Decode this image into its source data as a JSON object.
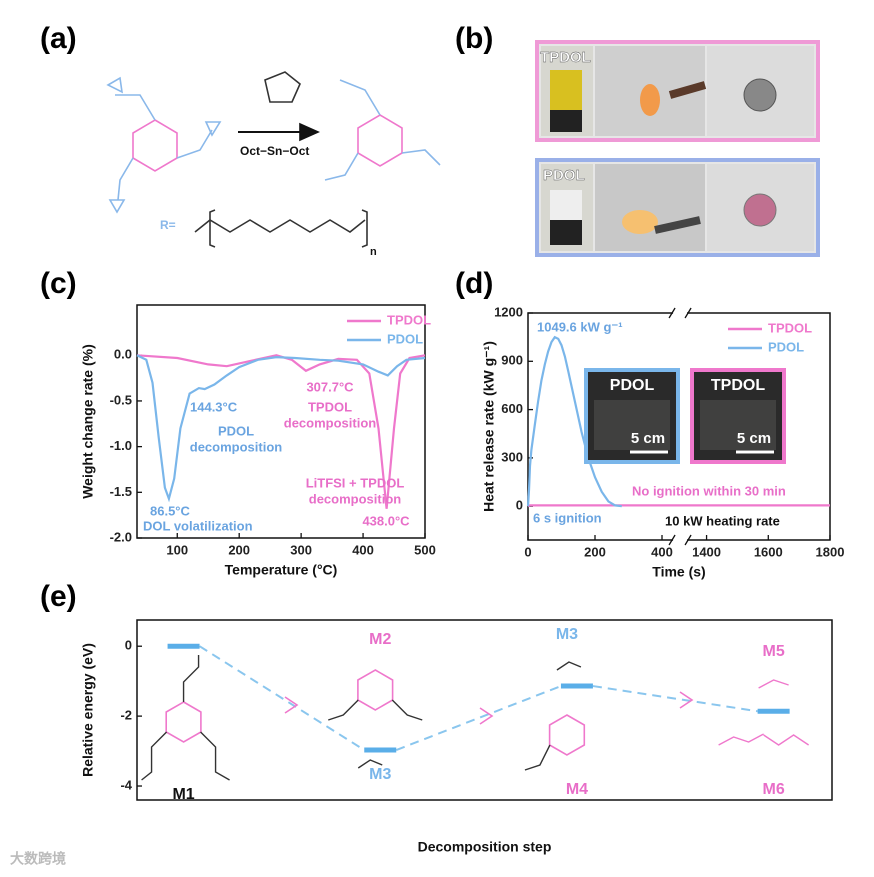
{
  "panel_labels": [
    "(a)",
    "(b)",
    "(c)",
    "(d)",
    "(e)"
  ],
  "scheme_a": {
    "catalyst": "Oct−Sn−Oct",
    "r_label": "R=",
    "subscript": "n"
  },
  "photos_b": {
    "labels": [
      "TPDOL",
      "PDOL"
    ]
  },
  "watermark": "大数跨境",
  "chart_data": [
    {
      "type": "line",
      "x_label": "Temperature (°C)",
      "y_label": "Weight change rate (%)",
      "xlim": [
        35,
        500
      ],
      "xticks": [
        100,
        200,
        300,
        400,
        500
      ],
      "ylim": [
        -2.0,
        0.55
      ],
      "yticks": [
        {
          "value": -2,
          "label": "-2.0"
        },
        -1.5,
        {
          "value": -1,
          "label": "-1.0"
        },
        -0.5,
        {
          "value": 0,
          "label": "0.0"
        }
      ],
      "legend": "upper right",
      "series": [
        {
          "name": "TPDOL",
          "color": "#ef78cc",
          "x": [
            35,
            100,
            150,
            180,
            220,
            260,
            285,
            307.7,
            330,
            360,
            390,
            410,
            425,
            438,
            450,
            460,
            475,
            500
          ],
          "values": [
            0,
            -0.03,
            -0.1,
            -0.12,
            -0.06,
            0,
            -0.05,
            -0.17,
            -0.1,
            -0.04,
            -0.05,
            -0.2,
            -0.8,
            -1.68,
            -0.8,
            -0.2,
            -0.03,
            0
          ]
        },
        {
          "name": "PDOL",
          "color": "#7ab6ea",
          "x": [
            35,
            50,
            60,
            70,
            80,
            86.5,
            95,
            105,
            120,
            135,
            144.3,
            160,
            180,
            200,
            230,
            260,
            290,
            330,
            360,
            400,
            425,
            440,
            455,
            470,
            500
          ],
          "values": [
            0,
            -0.05,
            -0.3,
            -0.9,
            -1.45,
            -1.57,
            -1.35,
            -0.8,
            -0.42,
            -0.36,
            -0.37,
            -0.32,
            -0.22,
            -0.13,
            -0.05,
            -0.02,
            -0.03,
            -0.05,
            -0.06,
            -0.1,
            -0.18,
            -0.22,
            -0.12,
            -0.05,
            -0.03
          ]
        }
      ],
      "annotations": [
        {
          "text": "86.5°C",
          "color": "#6aa4e0"
        },
        {
          "text": "DOL volatilization",
          "color": "#6aa4e0"
        },
        {
          "text": "144.3°C",
          "color": "#6aa4e0"
        },
        {
          "text": "PDOL",
          "color": "#6aa4e0"
        },
        {
          "text": "decomposition",
          "color": "#6aa4e0"
        },
        {
          "text": "307.7°C",
          "color": "#e86ec8"
        },
        {
          "text": "TPDOL",
          "color": "#e86ec8"
        },
        {
          "text": "decomposition",
          "color": "#e86ec8"
        },
        {
          "text": "LiTFSI + TPDOL",
          "color": "#e86ec8"
        },
        {
          "text": "decomposition",
          "color": "#e86ec8"
        },
        {
          "text": "438.0°C",
          "color": "#e86ec8"
        }
      ]
    },
    {
      "type": "line",
      "x_label": "Time (s)",
      "y_label": "Heat release rate (kW g⁻¹)",
      "xlim": [
        0,
        1800
      ],
      "x_break": [
        430,
        1340
      ],
      "xticks": [
        0,
        200,
        400,
        1400,
        1600,
        1800
      ],
      "ylim": [
        -210,
        1200
      ],
      "yticks": [
        0,
        300,
        600,
        900,
        1200
      ],
      "legend": "upper right",
      "series": [
        {
          "name": "TPDOL",
          "color": "#ef78cc",
          "x": [
            0,
            6,
            50,
            100,
            200,
            300,
            400,
            1400,
            1600,
            1800
          ],
          "values": [
            0,
            5,
            5,
            5,
            5,
            5,
            5,
            5,
            5,
            5
          ]
        },
        {
          "name": "PDOL",
          "color": "#7ab6ea",
          "x": [
            0,
            3,
            6,
            10,
            20,
            30,
            40,
            50,
            60,
            70,
            80,
            90,
            100,
            110,
            120,
            140,
            160,
            180,
            200,
            220,
            240,
            260,
            280
          ],
          "values": [
            0,
            100,
            250,
            350,
            500,
            650,
            780,
            880,
            960,
            1020,
            1049.6,
            1040,
            1000,
            930,
            840,
            650,
            460,
            300,
            180,
            90,
            30,
            5,
            0
          ]
        }
      ],
      "annotations": [
        {
          "text": "1049.6 kW g⁻¹",
          "color": "#6aa4e0"
        },
        {
          "text": "6 s ignition",
          "color": "#6aa4e0"
        },
        {
          "text": "No ignition within 30 min",
          "color": "#e86ec8"
        },
        {
          "text": "10 kW heating rate",
          "color": "#111111"
        }
      ],
      "insets": [
        {
          "label": "PDOL",
          "scale": "5 cm",
          "color": "#7ab6ea"
        },
        {
          "label": "TPDOL",
          "scale": "5 cm",
          "color": "#ef78cc"
        }
      ]
    },
    {
      "type": "energy",
      "x_label": "Decomposition step",
      "y_label": "Relative energy (eV)",
      "ylim": [
        -4.4,
        0.75
      ],
      "yticks": [
        0,
        -2,
        -4
      ],
      "color": "#5aaee8",
      "values": [
        0,
        -2.97,
        -1.14,
        -1.86
      ],
      "labels": [
        [
          {
            "text": "M1",
            "color": "#111111"
          }
        ],
        [
          {
            "text": "M2",
            "color": "#e86ec8"
          },
          {
            "text": "M3",
            "color": "#7ab6ea"
          }
        ],
        [
          {
            "text": "M3",
            "color": "#7ab6ea"
          },
          {
            "text": "M4",
            "color": "#e86ec8"
          }
        ],
        [
          {
            "text": "M5",
            "color": "#e86ec8"
          },
          {
            "text": "M6",
            "color": "#e86ec8"
          }
        ]
      ]
    }
  ]
}
